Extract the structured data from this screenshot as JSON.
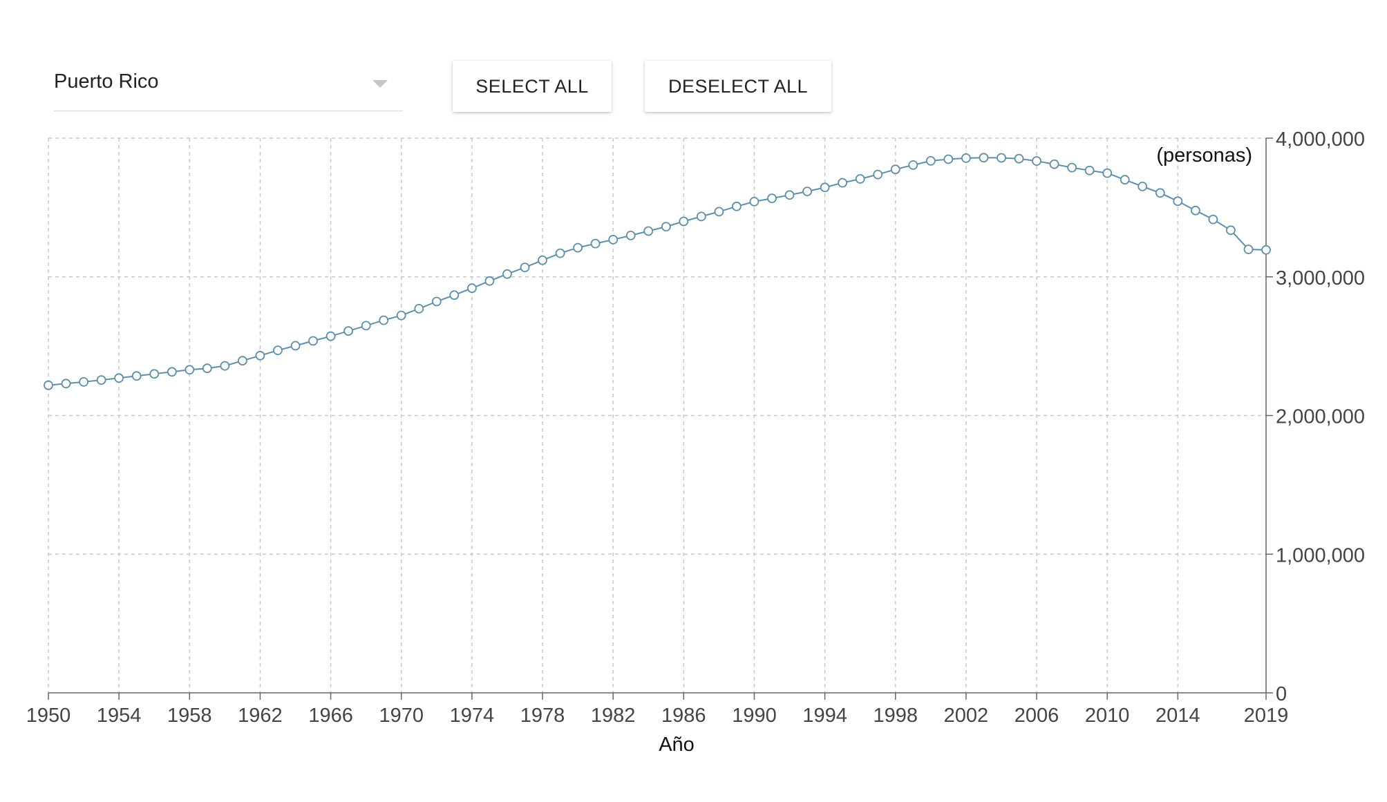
{
  "controls": {
    "country_selected": "Puerto Rico",
    "select_all_label": "SELECT ALL",
    "deselect_all_label": "DESELECT ALL"
  },
  "colors": {
    "series": "#5d8fab",
    "grid": "#c8c8c8",
    "axis": "#666666"
  },
  "chart_data": {
    "type": "line",
    "xlabel": "Año",
    "ylabel": "(personas)",
    "xlim": [
      1950,
      2019
    ],
    "ylim": [
      0,
      4000000
    ],
    "x_ticks": [
      1950,
      1954,
      1958,
      1962,
      1966,
      1970,
      1974,
      1978,
      1982,
      1986,
      1990,
      1994,
      1998,
      2002,
      2006,
      2010,
      2014,
      2019
    ],
    "y_ticks": [
      0,
      1000000,
      2000000,
      3000000,
      4000000
    ],
    "y_tick_labels": [
      "0",
      "1,000,000",
      "2,000,000",
      "3,000,000",
      "4,000,000"
    ],
    "grid": true,
    "y_axis_position": "right",
    "series": [
      {
        "x": [
          1950,
          1951,
          1952,
          1953,
          1954,
          1955,
          1956,
          1957,
          1958,
          1959,
          1960,
          1961,
          1962,
          1963,
          1964,
          1965,
          1966,
          1967,
          1968,
          1969,
          1970,
          1971,
          1972,
          1973,
          1974,
          1975,
          1976,
          1977,
          1978,
          1979,
          1980,
          1981,
          1982,
          1983,
          1984,
          1985,
          1986,
          1987,
          1988,
          1989,
          1990,
          1991,
          1992,
          1993,
          1994,
          1995,
          1996,
          1997,
          1998,
          1999,
          2000,
          2001,
          2002,
          2003,
          2004,
          2005,
          2006,
          2007,
          2008,
          2009,
          2010,
          2011,
          2012,
          2013,
          2014,
          2015,
          2016,
          2017,
          2018,
          2019
        ],
        "values": [
          2218000,
          2230000,
          2242000,
          2256000,
          2270000,
          2285000,
          2300000,
          2315000,
          2330000,
          2340000,
          2358000,
          2395000,
          2432000,
          2470000,
          2503000,
          2538000,
          2572000,
          2609000,
          2648000,
          2687000,
          2722000,
          2770000,
          2822000,
          2868000,
          2918000,
          2970000,
          3020000,
          3068000,
          3120000,
          3170000,
          3210000,
          3240000,
          3268000,
          3298000,
          3330000,
          3362000,
          3400000,
          3435000,
          3470000,
          3508000,
          3542000,
          3566000,
          3590000,
          3616000,
          3645000,
          3678000,
          3706000,
          3738000,
          3775000,
          3806000,
          3836000,
          3848000,
          3856000,
          3859000,
          3858000,
          3852000,
          3835000,
          3812000,
          3788000,
          3767000,
          3748000,
          3700000,
          3652000,
          3605000,
          3545000,
          3478000,
          3414000,
          3336000,
          3198000,
          3194000
        ]
      }
    ]
  }
}
